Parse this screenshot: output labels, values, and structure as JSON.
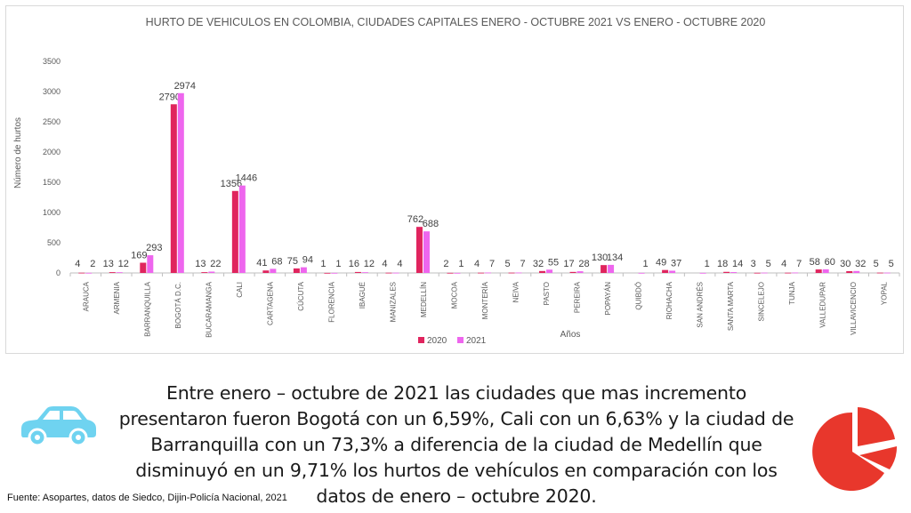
{
  "chart_data": {
    "type": "bar",
    "title": "HURTO DE VEHICULOS EN COLOMBIA, CIUDADES CAPITALES ENERO - OCTUBRE 2021 VS ENERO - OCTUBRE 2020",
    "xlabel": "Años",
    "ylabel": "Número de hurtos",
    "ylim": [
      0,
      3500
    ],
    "yticks": [
      "0",
      "500",
      "1000",
      "1500",
      "2000",
      "2500",
      "3000",
      "3500"
    ],
    "grid": false,
    "legend": "bottom",
    "categories": [
      "ARAUCA",
      "ARMENIA",
      "BARRANQUILLA",
      "BOGOTÁ D.C.",
      "BUCARAMANGA",
      "CALI",
      "CARTAGENA",
      "CÚCUTA",
      "FLORENCIA",
      "IBAGUÉ",
      "MANIZALES",
      "MEDELLÍN",
      "MOCOA",
      "MONTERÍA",
      "NEIVA",
      "PASTO",
      "PEREIRA",
      "POPAYÁN",
      "QUIBDÓ",
      "RIOHACHA",
      "SAN ANDRÉS",
      "SANTA MARTA",
      "SINCELEJO",
      "TUNJA",
      "VALLEDUPAR",
      "VILLAVICENCIO",
      "YOPAL"
    ],
    "series": [
      {
        "name": "2020",
        "color": "#e0245e",
        "values": [
          4,
          13,
          169,
          2790,
          13,
          1356,
          41,
          75,
          1,
          16,
          4,
          762,
          2,
          4,
          5,
          32,
          17,
          130,
          null,
          49,
          null,
          18,
          3,
          4,
          58,
          30,
          5
        ]
      },
      {
        "name": "2021",
        "color": "#ee66ee",
        "values": [
          2,
          12,
          293,
          2974,
          22,
          1446,
          68,
          94,
          1,
          12,
          4,
          688,
          1,
          7,
          7,
          55,
          28,
          134,
          1,
          37,
          1,
          14,
          5,
          7,
          60,
          32,
          5
        ]
      }
    ]
  },
  "caption": "Entre enero – octubre de 2021 las ciudades que mas incremento presentaron fueron Bogotá con un 6,59%, Cali con un 6,63% y la ciudad de Barranquilla con un 73,3% a diferencia de la ciudad de  Medellín que disminuyó en un 9,71% los hurtos de vehículos en comparación con los datos de enero – octubre 2020.",
  "source": "Fuente: Asopartes, datos de Siedco, Dijin-Policía Nacional, 2021",
  "icons": {
    "car": "car-icon",
    "pie": "pie-chart-icon"
  },
  "colors": {
    "car": "#6fd3f0",
    "pie": "#e8372c"
  }
}
